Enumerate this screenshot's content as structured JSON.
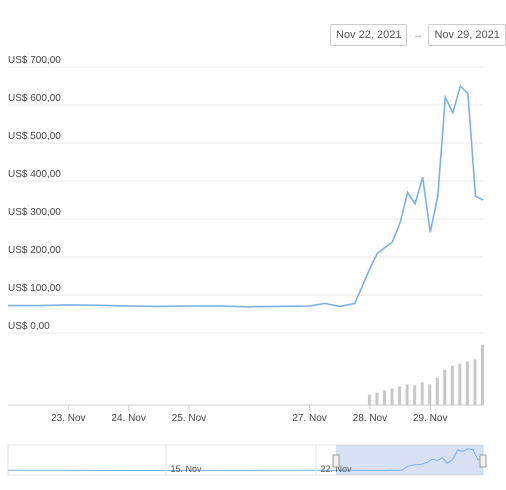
{
  "range": {
    "from": "Nov 22, 2021",
    "arrow": "→",
    "to": "Nov 29, 2021"
  },
  "colors": {
    "line": "#7cb0e8",
    "volume": "#c8c8c8",
    "grid": "#e9e9e9",
    "navigator_fill": "rgba(140,170,220,0.35)",
    "navigator_line": "#7cb0e8"
  },
  "chart_data": {
    "type": "line",
    "ylabel_ticks": [
      "US$ 0,00",
      "US$ 100,00",
      "US$ 200,00",
      "US$ 300,00",
      "US$ 400,00",
      "US$ 500,00",
      "US$ 600,00",
      "US$ 700,00"
    ],
    "yticks": [
      0,
      100,
      200,
      300,
      400,
      500,
      600,
      700
    ],
    "ylim": [
      0,
      700
    ],
    "xticks": [
      "23. Nov",
      "24. Nov",
      "25. Nov",
      "27. Nov",
      "28. Nov",
      "29. Nov"
    ],
    "grid": true,
    "series": [
      {
        "x": [
          "22 Nov 00:00",
          "22 Nov 12:00",
          "23 Nov 00:00",
          "23 Nov 12:00",
          "24 Nov 00:00",
          "24 Nov 12:00",
          "25 Nov 00:00",
          "25 Nov 12:00",
          "26 Nov 00:00",
          "26 Nov 12:00",
          "27 Nov 00:00",
          "27 Nov 06:00",
          "27 Nov 12:00",
          "27 Nov 18:00",
          "28 Nov 00:00",
          "28 Nov 03:00",
          "28 Nov 06:00",
          "28 Nov 09:00",
          "28 Nov 12:00",
          "28 Nov 15:00",
          "28 Nov 18:00",
          "28 Nov 21:00",
          "29 Nov 00:00",
          "29 Nov 03:00",
          "29 Nov 06:00",
          "29 Nov 09:00",
          "29 Nov 12:00",
          "29 Nov 15:00",
          "29 Nov 18:00",
          "29 Nov 21:00"
        ],
        "values": [
          72,
          72,
          74,
          73,
          71,
          70,
          71,
          71,
          69,
          70,
          71,
          78,
          70,
          78,
          170,
          210,
          225,
          240,
          290,
          370,
          340,
          410,
          265,
          360,
          620,
          580,
          650,
          630,
          360,
          350
        ]
      }
    ],
    "volume": [
      0,
      0,
      0,
      0,
      0,
      0,
      0,
      0,
      0,
      0,
      0,
      0,
      0,
      0,
      10,
      12,
      14,
      16,
      18,
      20,
      19,
      22,
      20,
      26,
      34,
      38,
      40,
      42,
      44,
      58
    ],
    "navigator_labels": [
      "15. Nov",
      "22. Nov"
    ]
  }
}
